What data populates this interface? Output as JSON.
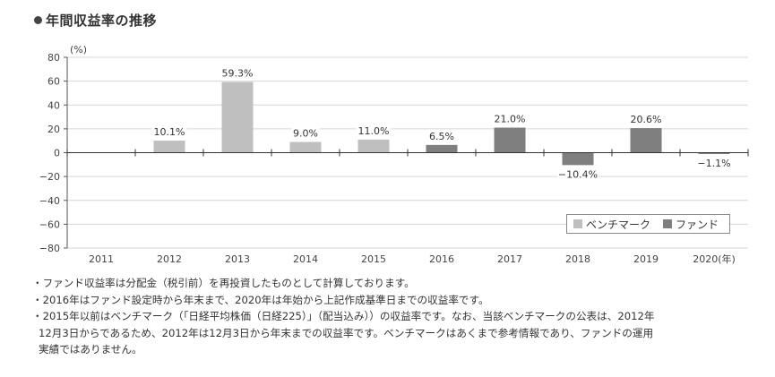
{
  "title": "年間収益率の推移",
  "chart_data": {
    "type": "bar",
    "unit_label": "(%)",
    "categories": [
      "2011",
      "2012",
      "2013",
      "2014",
      "2015",
      "2016",
      "2017",
      "2018",
      "2019",
      "2020(年)"
    ],
    "series": [
      {
        "name": "ベンチマーク",
        "color": "#bfbfbf",
        "values": [
          null,
          10.1,
          59.3,
          9.0,
          11.0,
          null,
          null,
          null,
          null,
          null
        ]
      },
      {
        "name": "ファンド",
        "color": "#7f7f7f",
        "values": [
          null,
          null,
          null,
          null,
          null,
          6.5,
          21.0,
          -10.4,
          20.6,
          -1.1
        ]
      }
    ],
    "data_labels": [
      "",
      "10.1%",
      "59.3%",
      "9.0%",
      "11.0%",
      "6.5%",
      "21.0%",
      "−10.4%",
      "20.6%",
      "−1.1%"
    ],
    "y_ticks": [
      "80",
      "60",
      "40",
      "20",
      "0",
      "−20",
      "−40",
      "−60",
      "−80"
    ],
    "ylim": [
      -80,
      80
    ],
    "grid": true,
    "legend": "bottom-right"
  },
  "notes": [
    "・ファンド収益率は分配金（税引前）を再投資したものとして計算しております。",
    "・2016年はファンド設定時から年末まで、2020年は年始から上記作成基準日までの収益率です。",
    "・2015年以前はベンチマーク（「日経平均株価（日経225）」（配当込み））の収益率です。なお、当該ベンチマークの公表は、2012年",
    "12月3日からであるため、2012年は12月3日から年末までの収益率です。ベンチマークはあくまで参考情報であり、ファンドの運用",
    "実績ではありません。"
  ]
}
